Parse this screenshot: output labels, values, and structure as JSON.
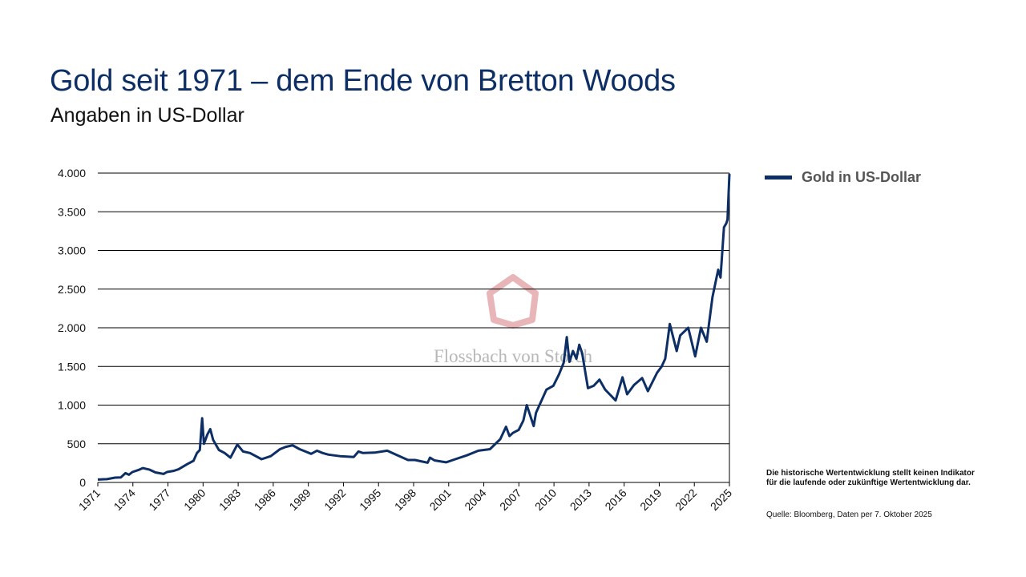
{
  "title": "Gold seit 1971 – dem Ende von Bretton Woods",
  "subtitle": "Angaben in US-Dollar",
  "watermark": "Flossbach von Storch",
  "note": "Die historische Wertentwicklung stellt keinen Indikator für die laufende oder zukünftige Wertentwicklung dar.",
  "source": "Quelle: Bloomberg, Daten per 7. Oktober 2025",
  "colors": {
    "series": "#0d2f66",
    "title": "#0d2f66",
    "watermark_logo": "#e8b5b8",
    "watermark_text": "#b8b8b8"
  },
  "chart_data": {
    "type": "line",
    "title": "",
    "xlabel": "",
    "ylabel": "",
    "xlim": [
      1971,
      2025.77
    ],
    "ylim": [
      0,
      4000
    ],
    "grid": true,
    "legend_placement": "right",
    "x_ticks": [
      "1971",
      "1974",
      "1977",
      "1980",
      "1983",
      "1986",
      "1989",
      "1992",
      "1995",
      "1998",
      "2001",
      "2004",
      "2007",
      "2010",
      "2013",
      "2016",
      "2019",
      "2022",
      "2025"
    ],
    "y_ticks": [
      {
        "v": 0,
        "label": "0"
      },
      {
        "v": 500,
        "label": "500"
      },
      {
        "v": 1000,
        "label": "1.000"
      },
      {
        "v": 1500,
        "label": "1.500"
      },
      {
        "v": 2000,
        "label": "2.000"
      },
      {
        "v": 2500,
        "label": "2.500"
      },
      {
        "v": 3000,
        "label": "3.000"
      },
      {
        "v": 3500,
        "label": "3.500"
      },
      {
        "v": 4000,
        "label": "4.000"
      }
    ],
    "series": [
      {
        "name": "Gold in US-Dollar",
        "x": [
          1971.0,
          1971.8,
          1972.5,
          1973.0,
          1973.4,
          1973.7,
          1974.0,
          1974.5,
          1974.9,
          1975.5,
          1976.0,
          1976.7,
          1977.0,
          1977.6,
          1978.0,
          1978.8,
          1979.3,
          1979.6,
          1979.85,
          1980.05,
          1980.2,
          1980.5,
          1980.75,
          1981.0,
          1981.5,
          1982.0,
          1982.5,
          1983.1,
          1983.6,
          1984.2,
          1985.2,
          1986.0,
          1986.8,
          1987.3,
          1987.9,
          1988.5,
          1989.5,
          1990.0,
          1990.5,
          1991.0,
          1992.0,
          1993.2,
          1993.6,
          1994.0,
          1995.0,
          1996.1,
          1997.0,
          1997.9,
          1998.5,
          1999.6,
          1999.8,
          2000.2,
          2001.2,
          2002.0,
          2003.0,
          2004.0,
          2005.0,
          2005.9,
          2006.4,
          2006.7,
          2007.0,
          2007.5,
          2007.9,
          2008.2,
          2008.8,
          2009.0,
          2009.9,
          2010.5,
          2011.0,
          2011.4,
          2011.67,
          2011.9,
          2012.2,
          2012.5,
          2012.75,
          2013.0,
          2013.3,
          2013.5,
          2014.0,
          2014.5,
          2015.0,
          2015.9,
          2016.5,
          2016.9,
          2017.5,
          2018.2,
          2018.7,
          2019.5,
          2019.9,
          2020.2,
          2020.6,
          2021.2,
          2021.5,
          2022.2,
          2022.8,
          2023.3,
          2023.8,
          2024.0,
          2024.3,
          2024.8,
          2025.0,
          2025.3,
          2025.5,
          2025.6,
          2025.77
        ],
        "values": [
          37,
          43,
          62,
          65,
          120,
          100,
          135,
          160,
          185,
          165,
          130,
          110,
          135,
          150,
          170,
          240,
          280,
          380,
          420,
          830,
          500,
          620,
          690,
          550,
          420,
          380,
          320,
          490,
          400,
          380,
          300,
          340,
          430,
          460,
          480,
          430,
          370,
          410,
          380,
          360,
          340,
          330,
          400,
          380,
          385,
          410,
          350,
          290,
          290,
          255,
          320,
          285,
          260,
          300,
          350,
          410,
          430,
          560,
          720,
          600,
          640,
          680,
          800,
          1000,
          730,
          900,
          1200,
          1250,
          1400,
          1550,
          1880,
          1560,
          1700,
          1600,
          1780,
          1670,
          1400,
          1220,
          1250,
          1330,
          1200,
          1060,
          1360,
          1140,
          1260,
          1350,
          1180,
          1420,
          1500,
          1600,
          2050,
          1700,
          1900,
          2000,
          1630,
          2000,
          1820,
          2050,
          2400,
          2750,
          2650,
          3300,
          3350,
          3400,
          3990
        ]
      }
    ]
  }
}
